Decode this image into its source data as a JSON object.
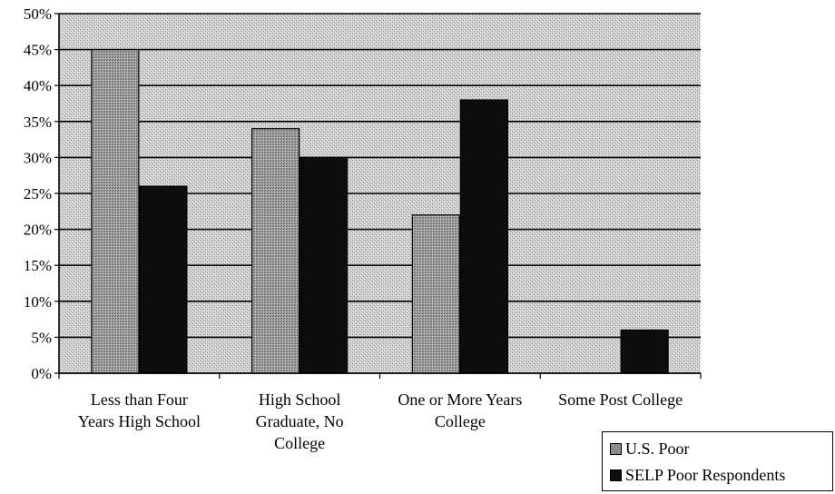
{
  "chart_data": {
    "type": "bar",
    "categories": [
      [
        "Less than Four",
        "Years High School"
      ],
      [
        "High School",
        "Graduate, No",
        "College"
      ],
      [
        "One or More Years",
        "College"
      ],
      [
        "Some Post College"
      ]
    ],
    "series": [
      {
        "name": "U.S. Poor",
        "values": [
          45,
          34,
          22,
          0
        ],
        "color": "#9a9a9a"
      },
      {
        "name": "SELP Poor Respondents",
        "values": [
          26,
          30,
          38,
          6
        ],
        "color": "#0d0d0d"
      }
    ],
    "y_ticks": [
      "0%",
      "5%",
      "10%",
      "15%",
      "20%",
      "25%",
      "30%",
      "35%",
      "40%",
      "45%",
      "50%"
    ],
    "ylim": [
      0,
      50
    ],
    "grid": true,
    "legend_position": "bottom-right",
    "plot_background": "#c8c8c8"
  }
}
